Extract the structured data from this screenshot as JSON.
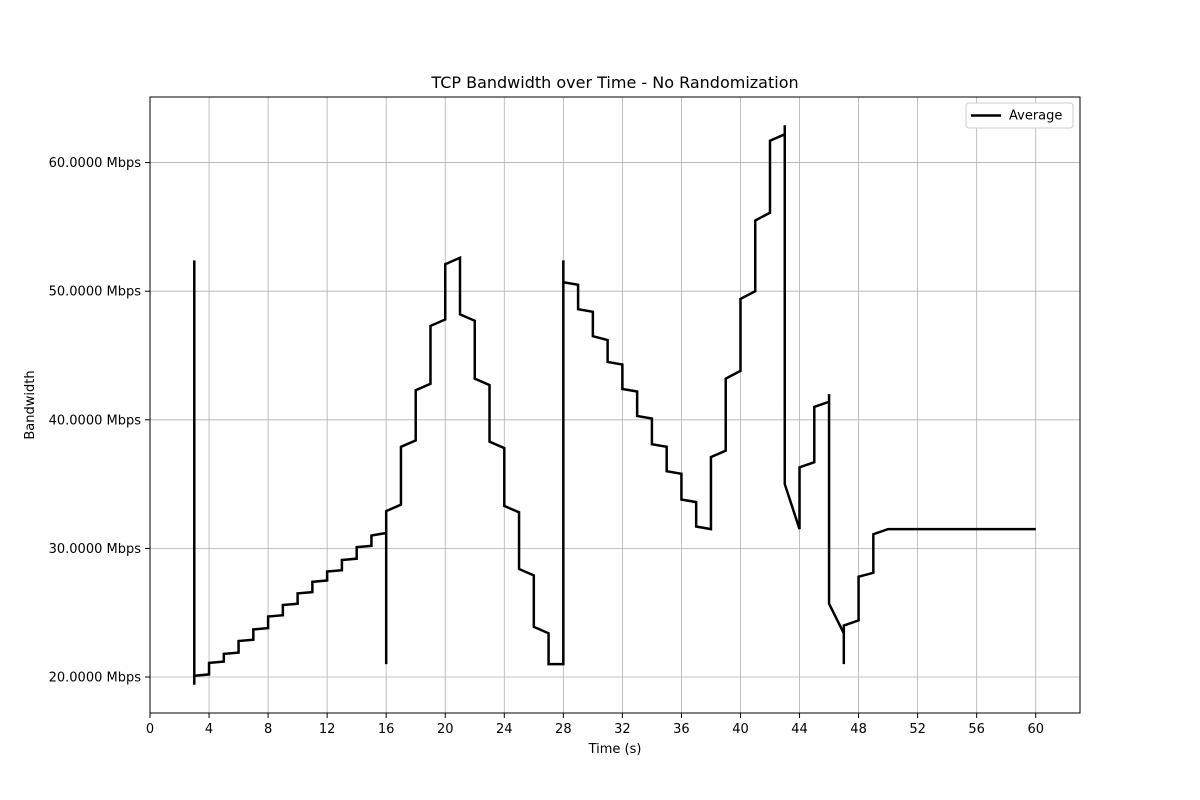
{
  "chart_data": {
    "type": "line",
    "title": "TCP Bandwidth over Time - No Randomization",
    "xlabel": "Time (s)",
    "ylabel": "Bandwidth",
    "xlim": [
      0,
      63
    ],
    "ylim": [
      17.2,
      65.1
    ],
    "x_ticks": [
      0,
      4,
      8,
      12,
      16,
      20,
      24,
      28,
      32,
      36,
      40,
      44,
      48,
      52,
      56,
      60
    ],
    "x_tick_labels": [
      "0",
      "4",
      "8",
      "12",
      "16",
      "20",
      "24",
      "28",
      "32",
      "36",
      "40",
      "44",
      "48",
      "52",
      "56",
      "60"
    ],
    "y_ticks": [
      20,
      30,
      40,
      50,
      60
    ],
    "y_tick_labels": [
      "20.0000 Mbps",
      "30.0000 Mbps",
      "40.0000 Mbps",
      "50.0000 Mbps",
      "60.0000 Mbps"
    ],
    "grid": true,
    "legend_position": "top-right",
    "series": [
      {
        "name": "Average",
        "color": "#000000",
        "x": [
          3,
          3,
          3,
          4,
          4,
          5,
          5,
          6,
          6,
          7,
          7,
          8,
          8,
          9,
          9,
          10,
          10,
          11,
          11,
          12,
          12,
          13,
          13,
          14,
          14,
          15,
          15,
          16,
          16,
          16,
          17,
          17,
          18,
          18,
          19,
          19,
          20,
          20,
          21,
          21,
          22,
          22,
          23,
          23,
          24,
          24,
          25,
          25,
          26,
          26,
          27,
          27,
          28,
          28,
          28,
          29,
          29,
          30,
          30,
          31,
          31,
          32,
          32,
          33,
          33,
          34,
          34,
          35,
          35,
          36,
          36,
          37,
          37,
          38,
          38,
          39,
          39,
          40,
          40,
          41,
          41,
          42,
          42,
          43,
          43,
          43,
          44,
          44,
          45,
          45,
          46,
          46,
          46,
          47,
          47,
          47,
          48,
          48,
          49,
          49,
          50,
          60
        ],
        "y": [
          52.4,
          19.4,
          20.1,
          20.2,
          21.1,
          21.2,
          21.8,
          21.9,
          22.8,
          22.9,
          23.7,
          23.8,
          24.7,
          24.8,
          25.6,
          25.7,
          26.5,
          26.6,
          27.4,
          27.5,
          28.2,
          28.3,
          29.1,
          29.2,
          30.1,
          30.2,
          31.0,
          31.2,
          21.0,
          32.9,
          33.4,
          37.9,
          38.4,
          42.3,
          42.8,
          47.3,
          47.8,
          52.1,
          52.6,
          48.2,
          47.7,
          43.2,
          42.7,
          38.3,
          37.8,
          33.3,
          32.8,
          28.4,
          27.9,
          23.9,
          23.4,
          21.0,
          21.0,
          52.4,
          50.7,
          50.5,
          48.6,
          48.4,
          46.5,
          46.2,
          44.5,
          44.3,
          42.4,
          42.2,
          40.3,
          40.1,
          38.1,
          37.9,
          36.0,
          35.8,
          33.8,
          33.6,
          31.7,
          31.5,
          37.1,
          37.6,
          43.2,
          43.8,
          49.4,
          50.0,
          55.5,
          56.1,
          61.7,
          62.2,
          62.9,
          35.0,
          31.5,
          36.3,
          36.7,
          41.0,
          41.4,
          42.0,
          25.7,
          23.4,
          21.0,
          24.0,
          24.4,
          27.8,
          28.1,
          31.1,
          31.5,
          31.5
        ]
      }
    ]
  }
}
